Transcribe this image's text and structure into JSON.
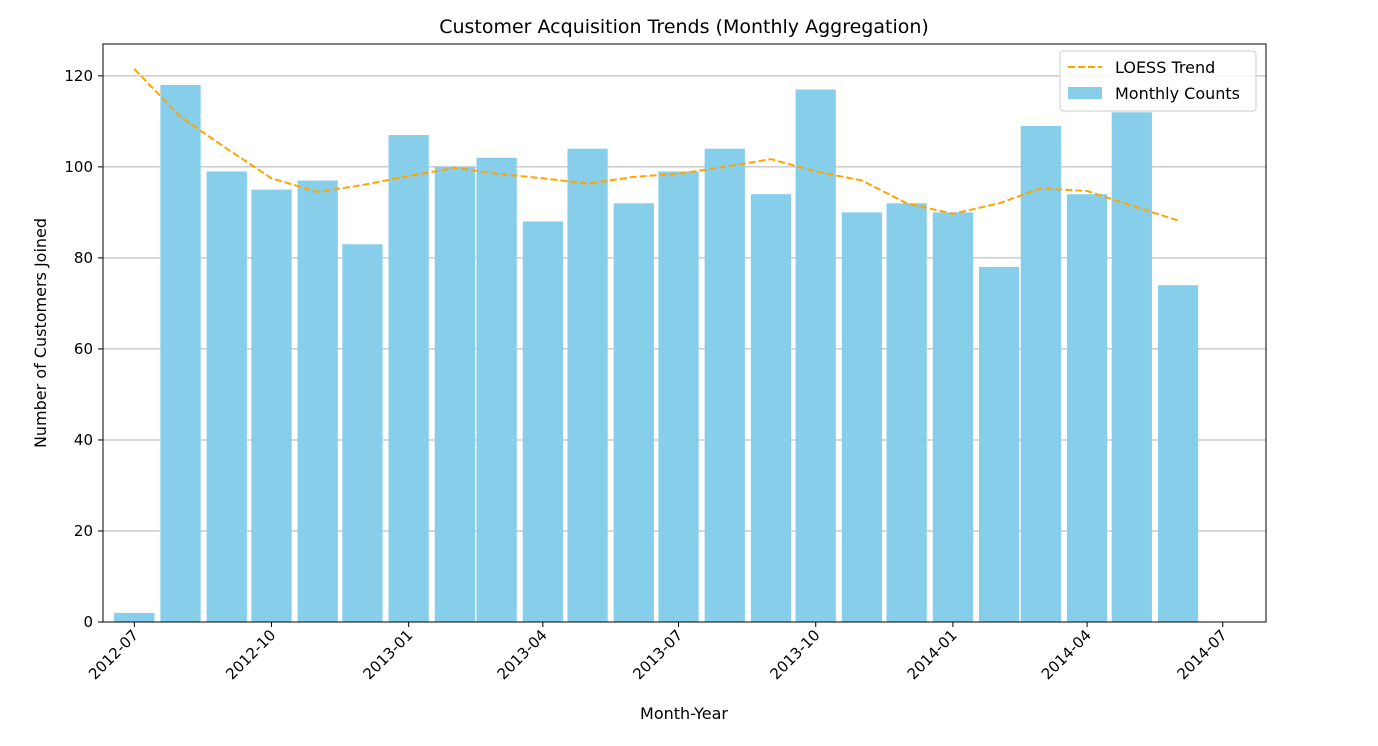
{
  "chart_data": {
    "type": "bar",
    "title": "Customer Acquisition Trends (Monthly Aggregation)",
    "xlabel": "Month-Year",
    "ylabel": "Number of Customers Joined",
    "grid": "horizontal",
    "legend_placement": "top-right",
    "ylim": [
      0,
      127
    ],
    "yticks": [
      0,
      20,
      40,
      60,
      80,
      100,
      120
    ],
    "xlim": [
      "2012-06-10",
      "2014-07-30"
    ],
    "xticks": [
      {
        "date": "2012-07-01",
        "label": "2012-07"
      },
      {
        "date": "2012-10-01",
        "label": "2012-10"
      },
      {
        "date": "2013-01-01",
        "label": "2013-01"
      },
      {
        "date": "2013-04-01",
        "label": "2013-04"
      },
      {
        "date": "2013-07-01",
        "label": "2013-07"
      },
      {
        "date": "2013-10-01",
        "label": "2013-10"
      },
      {
        "date": "2014-01-01",
        "label": "2014-01"
      },
      {
        "date": "2014-04-01",
        "label": "2014-04"
      },
      {
        "date": "2014-07-01",
        "label": "2014-07"
      }
    ],
    "bar_color": "#87ceeb",
    "trend_color": "#ffa500",
    "legend": {
      "trend_label": "LOESS Trend",
      "bar_label": "Monthly Counts"
    },
    "series": [
      {
        "name": "Monthly Counts",
        "kind": "bar",
        "x": [
          "2012-07-01",
          "2012-08-01",
          "2012-09-01",
          "2012-10-01",
          "2012-11-01",
          "2012-12-01",
          "2013-01-01",
          "2013-02-01",
          "2013-03-01",
          "2013-04-01",
          "2013-05-01",
          "2013-06-01",
          "2013-07-01",
          "2013-08-01",
          "2013-09-01",
          "2013-10-01",
          "2013-11-01",
          "2013-12-01",
          "2014-01-01",
          "2014-02-01",
          "2014-03-01",
          "2014-04-01",
          "2014-05-01",
          "2014-06-01"
        ],
        "values": [
          2,
          118,
          99,
          95,
          97,
          83,
          107,
          100,
          102,
          88,
          104,
          92,
          99,
          104,
          94,
          117,
          90,
          92,
          90,
          78,
          109,
          94,
          112,
          74
        ]
      },
      {
        "name": "LOESS Trend",
        "kind": "line",
        "x": [
          "2012-07-01",
          "2012-08-01",
          "2012-09-01",
          "2012-10-01",
          "2012-11-01",
          "2012-12-01",
          "2013-01-01",
          "2013-02-01",
          "2013-03-01",
          "2013-04-01",
          "2013-05-01",
          "2013-06-01",
          "2013-07-01",
          "2013-08-01",
          "2013-09-01",
          "2013-10-01",
          "2013-11-01",
          "2013-12-01",
          "2014-01-01",
          "2014-02-01",
          "2014-03-01",
          "2014-04-01",
          "2014-05-01",
          "2014-06-01"
        ],
        "values": [
          121.5,
          111,
          104,
          97.5,
          94.5,
          96,
          98,
          99.8,
          98.5,
          97.5,
          96.3,
          97.8,
          98.5,
          100,
          101.7,
          99,
          97,
          92,
          89.7,
          92,
          95.3,
          94.7,
          91.5,
          88.2
        ]
      }
    ]
  }
}
